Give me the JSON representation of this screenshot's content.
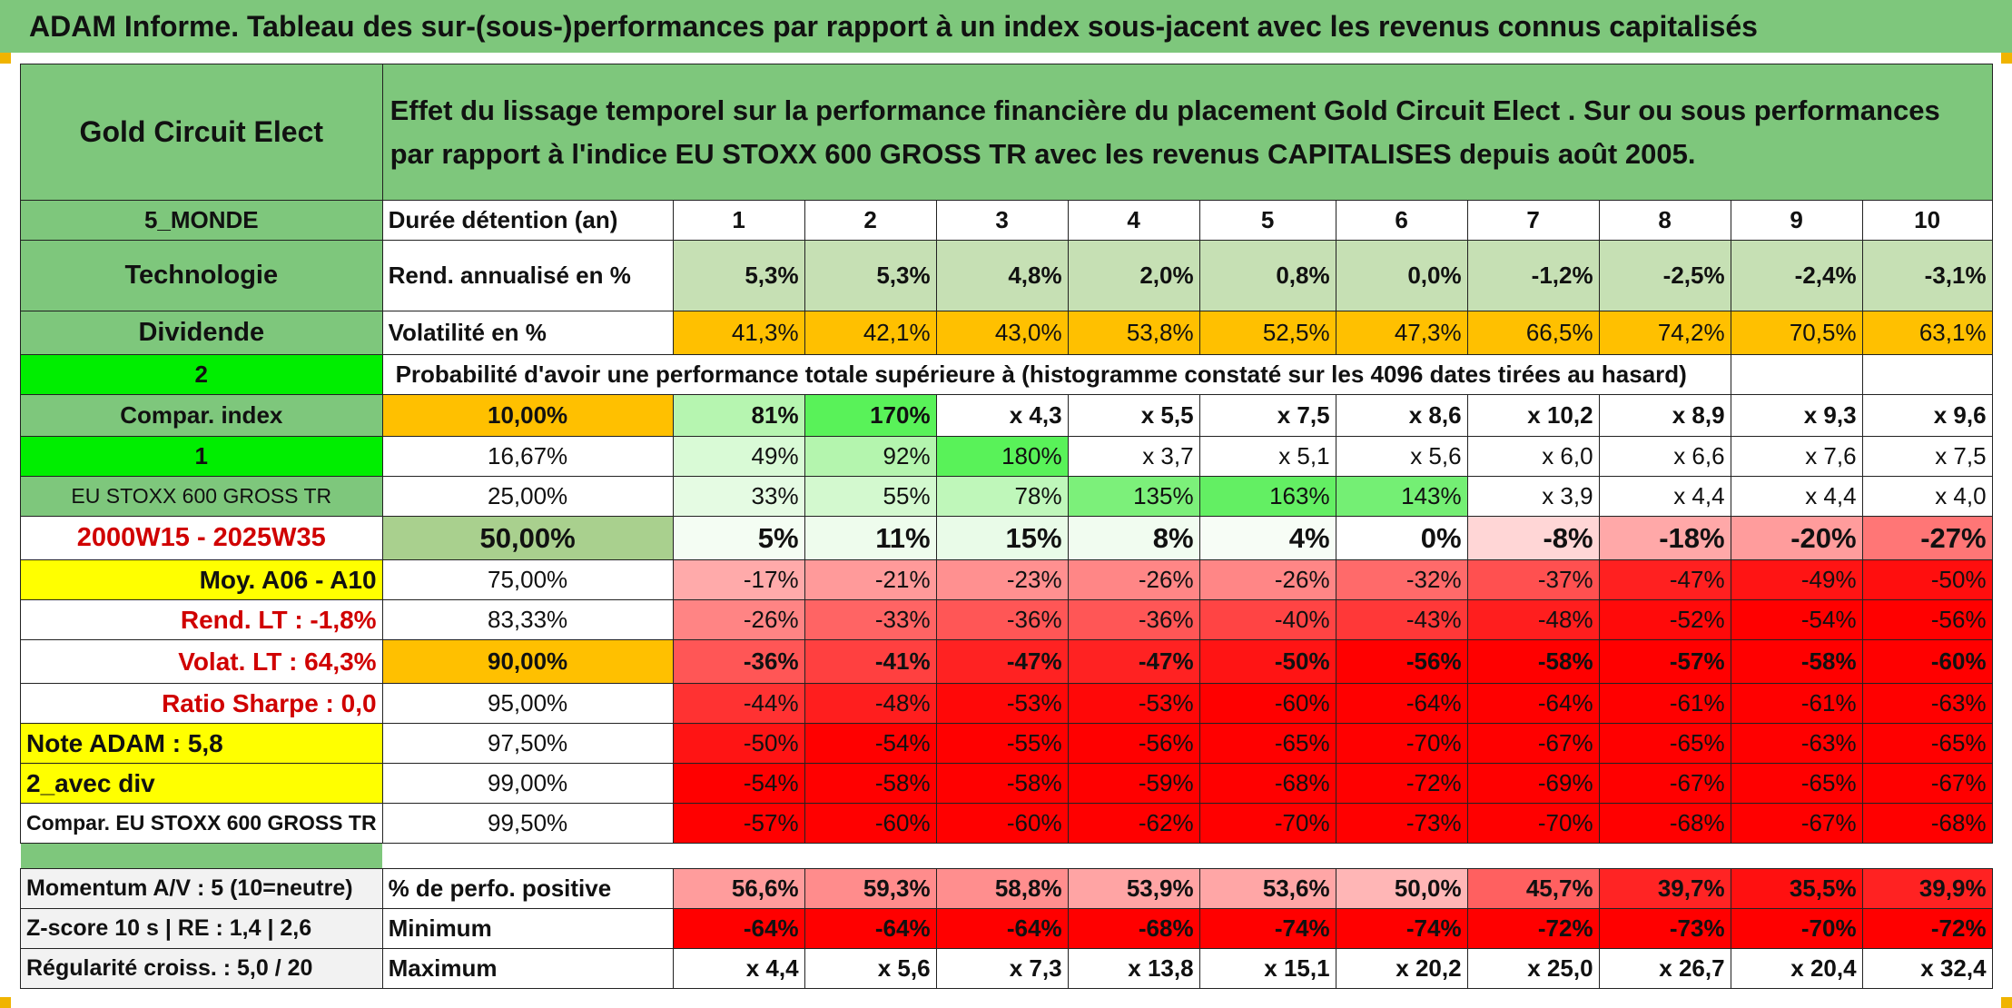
{
  "title": "ADAM Informe. Tableau des sur-(sous-)performances par rapport à un index sous-jacent avec les revenus connus capitalisés",
  "asset_name": "Gold Circuit Elect",
  "description": "Effet du lissage temporel sur la performance financière du placement Gold Circuit Elect . Sur ou sous performances par rapport à l'indice EU STOXX 600 GROSS TR avec les revenus CAPITALISES depuis août 2005.",
  "left_labels": {
    "region": "5_MONDE",
    "sector": "Technologie",
    "dividend": "Dividende",
    "num2": "2",
    "compar_index": "Compar. index",
    "num1": "1",
    "index_name": "EU STOXX 600 GROSS TR",
    "period": "2000W15 - 2025W35",
    "moy": "Moy. A06 - A10",
    "rend_lt": "Rend. LT :    -1,8%",
    "volat_lt": "Volat. LT :   64,3%",
    "sharpe": "Ratio Sharpe :    0,0",
    "note": "Note ADAM : 5,8",
    "avec_div": "2_avec div",
    "compar_full": "Compar. EU STOXX 600 GROSS TR",
    "momentum": "Momentum A/V : 5 (10=neutre)",
    "zscore": "Z-score 10 s | RE : 1,4 | 2,6",
    "regularite": "Régularité croiss. : 5,0 / 20"
  },
  "header_row": {
    "label": "Durée détention (an)",
    "years": [
      "1",
      "2",
      "3",
      "4",
      "5",
      "6",
      "7",
      "8",
      "9",
      "10"
    ]
  },
  "rend_row": {
    "label": "Rend. annualisé en %",
    "values": [
      "5,3%",
      "5,3%",
      "4,8%",
      "2,0%",
      "0,8%",
      "0,0%",
      "-1,2%",
      "-2,5%",
      "-2,4%",
      "-3,1%"
    ]
  },
  "vol_row": {
    "label": "Volatilité en %",
    "values": [
      "41,3%",
      "42,1%",
      "43,0%",
      "53,8%",
      "52,5%",
      "47,3%",
      "66,5%",
      "74,2%",
      "70,5%",
      "63,1%"
    ]
  },
  "prob_label": "Probabilité d'avoir une performance totale supérieure à (histogramme constaté sur les 4096 dates tirées au hasard)",
  "percentile_rows": [
    {
      "p": "10,00%",
      "values": [
        "81%",
        "170%",
        "x 4,3",
        "x 5,5",
        "x 7,5",
        "x 8,6",
        "x 10,2",
        "x 8,9",
        "x 9,3",
        "x 9,6"
      ],
      "colors": [
        "#b6f5b0",
        "#59f259",
        "#ffffff",
        "#ffffff",
        "#ffffff",
        "#ffffff",
        "#ffffff",
        "#ffffff",
        "#ffffff",
        "#ffffff"
      ]
    },
    {
      "p": "16,67%",
      "values": [
        "49%",
        "92%",
        "180%",
        "x 3,7",
        "x 5,1",
        "x 5,6",
        "x 6,0",
        "x 6,6",
        "x 7,6",
        "x 7,5"
      ],
      "colors": [
        "#d9fad6",
        "#b4f5ae",
        "#59f259",
        "#ffffff",
        "#ffffff",
        "#ffffff",
        "#ffffff",
        "#ffffff",
        "#ffffff",
        "#ffffff"
      ]
    },
    {
      "p": "25,00%",
      "values": [
        "33%",
        "55%",
        "78%",
        "135%",
        "163%",
        "143%",
        "x 3,9",
        "x 4,4",
        "x 4,4",
        "x 4,0"
      ],
      "colors": [
        "#e5fbe3",
        "#d3f9cf",
        "#bff7ba",
        "#7cf07a",
        "#63ef63",
        "#74ef74",
        "#ffffff",
        "#ffffff",
        "#ffffff",
        "#ffffff"
      ]
    },
    {
      "p": "50,00%",
      "values": [
        "5%",
        "11%",
        "15%",
        "8%",
        "4%",
        "0%",
        "-8%",
        "-18%",
        "-20%",
        "-27%"
      ],
      "colors": [
        "#f4fdf3",
        "#eefced",
        "#e9fbe8",
        "#f1fcf0",
        "#f7fdf6",
        "#ffffff",
        "#ffd6d6",
        "#ffa8a8",
        "#ff9c9c",
        "#ff7676"
      ]
    },
    {
      "p": "75,00%",
      "values": [
        "-17%",
        "-21%",
        "-23%",
        "-26%",
        "-26%",
        "-32%",
        "-37%",
        "-47%",
        "-49%",
        "-50%"
      ],
      "colors": [
        "#ffaaaa",
        "#ff9a9a",
        "#ff9090",
        "#ff8686",
        "#ff8686",
        "#ff6a6a",
        "#ff5050",
        "#ff2020",
        "#ff1414",
        "#ff0e0e"
      ]
    },
    {
      "p": "83,33%",
      "values": [
        "-26%",
        "-33%",
        "-36%",
        "-36%",
        "-40%",
        "-43%",
        "-48%",
        "-52%",
        "-54%",
        "-56%"
      ],
      "colors": [
        "#ff8484",
        "#ff6464",
        "#ff5656",
        "#ff5656",
        "#ff4444",
        "#ff3838",
        "#ff1e1e",
        "#ff0a0a",
        "#ff0000",
        "#ff0000"
      ]
    },
    {
      "p": "90,00%",
      "values": [
        "-36%",
        "-41%",
        "-47%",
        "-47%",
        "-50%",
        "-56%",
        "-58%",
        "-57%",
        "-58%",
        "-60%"
      ],
      "colors": [
        "#ff5656",
        "#ff4040",
        "#ff2222",
        "#ff2222",
        "#ff1414",
        "#ff0000",
        "#ff0000",
        "#ff0000",
        "#ff0000",
        "#ff0000"
      ]
    },
    {
      "p": "95,00%",
      "values": [
        "-44%",
        "-48%",
        "-53%",
        "-53%",
        "-60%",
        "-64%",
        "-64%",
        "-61%",
        "-61%",
        "-63%"
      ],
      "colors": [
        "#ff3232",
        "#ff1e1e",
        "#ff0808",
        "#ff0808",
        "#ff0000",
        "#ff0000",
        "#ff0000",
        "#ff0000",
        "#ff0000",
        "#ff0000"
      ]
    },
    {
      "p": "97,50%",
      "values": [
        "-50%",
        "-54%",
        "-55%",
        "-56%",
        "-65%",
        "-70%",
        "-67%",
        "-65%",
        "-63%",
        "-65%"
      ],
      "colors": [
        "#ff1414",
        "#ff0000",
        "#ff0000",
        "#ff0000",
        "#ff0000",
        "#ff0000",
        "#ff0000",
        "#ff0000",
        "#ff0000",
        "#ff0000"
      ]
    },
    {
      "p": "99,00%",
      "values": [
        "-54%",
        "-58%",
        "-58%",
        "-59%",
        "-68%",
        "-72%",
        "-69%",
        "-67%",
        "-65%",
        "-67%"
      ],
      "colors": [
        "#ff0000",
        "#ff0000",
        "#ff0000",
        "#ff0000",
        "#ff0000",
        "#ff0000",
        "#ff0000",
        "#ff0000",
        "#ff0000",
        "#ff0000"
      ]
    },
    {
      "p": "99,50%",
      "values": [
        "-57%",
        "-60%",
        "-60%",
        "-62%",
        "-70%",
        "-73%",
        "-70%",
        "-68%",
        "-67%",
        "-68%"
      ],
      "colors": [
        "#ff0000",
        "#ff0000",
        "#ff0000",
        "#ff0000",
        "#ff0000",
        "#ff0000",
        "#ff0000",
        "#ff0000",
        "#ff0000",
        "#ff0000"
      ]
    }
  ],
  "stats_rows": [
    {
      "label": "% de perfo. positive",
      "values": [
        "56,6%",
        "59,3%",
        "58,8%",
        "53,9%",
        "53,6%",
        "50,0%",
        "45,7%",
        "39,7%",
        "35,5%",
        "39,9%"
      ],
      "colors": [
        "#ff9c9c",
        "#ff8c8c",
        "#ff8e8e",
        "#ffa4a4",
        "#ffa6a6",
        "#ffb6b6",
        "#ff6060",
        "#ff2424",
        "#ff1010",
        "#ff2222"
      ]
    },
    {
      "label": "Minimum",
      "values": [
        "-64%",
        "-64%",
        "-64%",
        "-68%",
        "-74%",
        "-74%",
        "-72%",
        "-73%",
        "-70%",
        "-72%"
      ],
      "colors": [
        "#ff0000",
        "#ff0000",
        "#ff0000",
        "#ff0000",
        "#ff0000",
        "#ff0000",
        "#ff0000",
        "#ff0000",
        "#ff0000",
        "#ff0000"
      ]
    },
    {
      "label": "Maximum",
      "values": [
        "x 4,4",
        "x 5,6",
        "x 7,3",
        "x 13,8",
        "x 15,1",
        "x 20,2",
        "x 25,0",
        "x 26,7",
        "x 20,4",
        "x 32,4"
      ],
      "colors": [
        "#ffffff",
        "#ffffff",
        "#ffffff",
        "#ffffff",
        "#ffffff",
        "#ffffff",
        "#ffffff",
        "#ffffff",
        "#ffffff",
        "#ffffff"
      ]
    }
  ]
}
